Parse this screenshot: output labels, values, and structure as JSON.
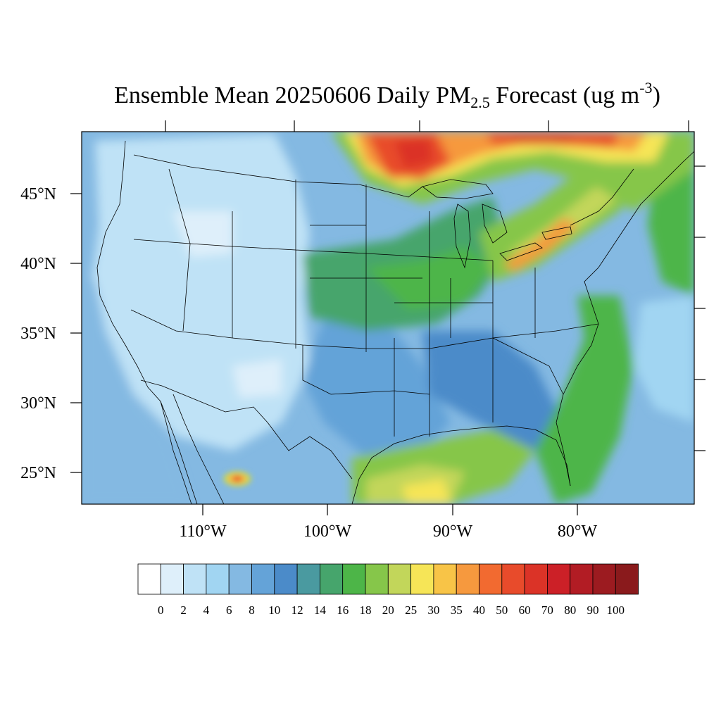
{
  "title": {
    "prefix": "Ensemble Mean 20250606 Daily PM",
    "subscript": "2.5",
    "middle": " Forecast (ug m",
    "superscript": "-3",
    "suffix": ")"
  },
  "map": {
    "region": "CONUS",
    "lat_labels": [
      "25°N",
      "30°N",
      "35°N",
      "40°N",
      "45°N"
    ],
    "lon_labels": [
      "110°W",
      "100°W",
      "90°W",
      "80°W"
    ],
    "colors": {
      "c0": "#ffffff",
      "c2": "#deeffa",
      "c4": "#bfe2f6",
      "c6": "#a1d5f2",
      "c8": "#84b9e2",
      "c10": "#64a3d8",
      "c12": "#4b8bc9",
      "c14": "#4a9aa0",
      "c16": "#46a56c",
      "c18": "#4db548",
      "c20": "#86c64a",
      "c25": "#c2d65a",
      "c30": "#f6e557",
      "c35": "#f8c447",
      "c40": "#f6993e",
      "c50": "#f26a30",
      "c60": "#e84b2b",
      "c70": "#db3327",
      "c80": "#cc2027",
      "c90": "#b21c24",
      "c100": "#9c1b20",
      "c110": "#8a1a1c",
      "boundary": "#000000"
    }
  },
  "colorbar": {
    "labels": [
      "0",
      "2",
      "4",
      "6",
      "8",
      "10",
      "12",
      "14",
      "16",
      "18",
      "20",
      "25",
      "30",
      "35",
      "40",
      "50",
      "60",
      "70",
      "80",
      "90",
      "100"
    ],
    "colors": [
      "#ffffff",
      "#deeffa",
      "#bfe2f6",
      "#a1d5f2",
      "#84b9e2",
      "#64a3d8",
      "#4b8bc9",
      "#4a9aa0",
      "#46a56c",
      "#4db548",
      "#86c64a",
      "#c2d65a",
      "#f6e557",
      "#f8c447",
      "#f6993e",
      "#f26a30",
      "#e84b2b",
      "#db3327",
      "#cc2027",
      "#b21c24",
      "#9c1b20",
      "#8a1a1c"
    ]
  }
}
